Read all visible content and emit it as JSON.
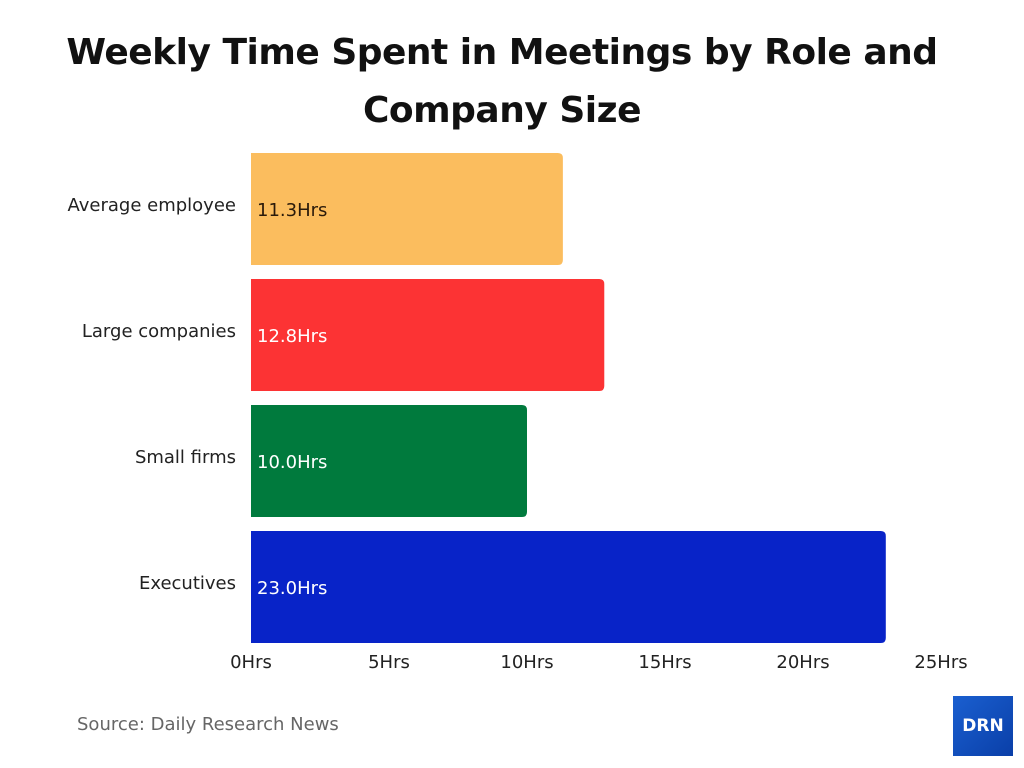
{
  "chart_data": {
    "type": "bar",
    "orientation": "horizontal",
    "title": "Weekly Time Spent in Meetings by Role and Company Size",
    "categories": [
      "Average employee",
      "Large companies",
      "Small firms",
      "Executives"
    ],
    "values": [
      11.3,
      12.8,
      10.0,
      23.0
    ],
    "data_labels": [
      "11.3Hrs",
      "12.8Hrs",
      "10.0Hrs",
      "23.0Hrs"
    ],
    "colors": [
      "#fbbd5e",
      "#fc3334",
      "#007a3d",
      "#0823c8"
    ],
    "label_colors": [
      "#2a1a0a",
      "#ffffff",
      "#ffffff",
      "#ffffff"
    ],
    "xlim": [
      0,
      25
    ],
    "xticks": [
      0,
      5,
      10,
      15,
      20,
      25
    ],
    "xtick_labels": [
      "0Hrs",
      "5Hrs",
      "10Hrs",
      "15Hrs",
      "20Hrs",
      "25Hrs"
    ],
    "xlabel": "",
    "ylabel": "",
    "grid": false
  },
  "source": "Source: Daily Research News",
  "logo_text": "DRN"
}
